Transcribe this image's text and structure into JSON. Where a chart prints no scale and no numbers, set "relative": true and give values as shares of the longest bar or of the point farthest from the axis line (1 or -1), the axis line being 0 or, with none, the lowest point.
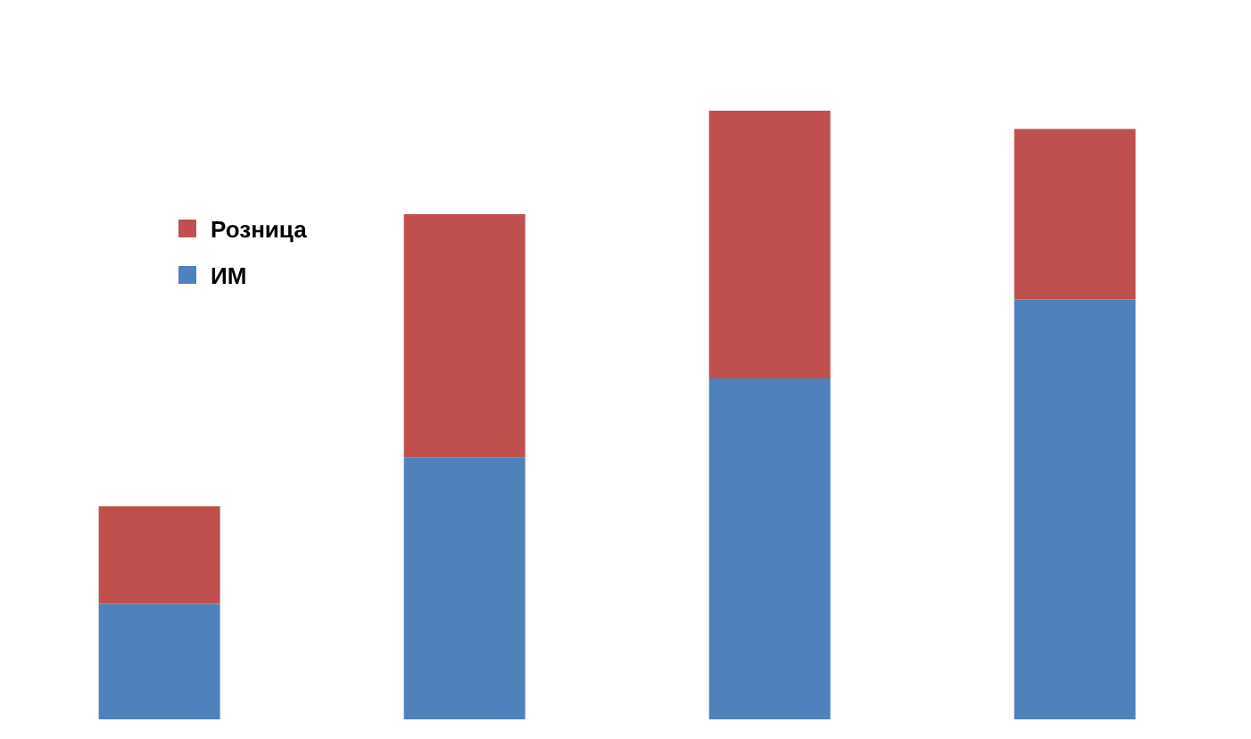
{
  "chart_data": {
    "type": "bar",
    "stacked": true,
    "relative": true,
    "legend": "left",
    "categories": [
      null,
      null,
      null,
      null
    ],
    "series": [
      {
        "name": "ИМ",
        "color": "#4f81bd",
        "values": [
          0.19,
          0.43,
          0.56,
          0.69
        ]
      },
      {
        "name": "Розница",
        "color": "#c0504d",
        "values": [
          0.16,
          0.4,
          0.44,
          0.28
        ]
      }
    ]
  }
}
